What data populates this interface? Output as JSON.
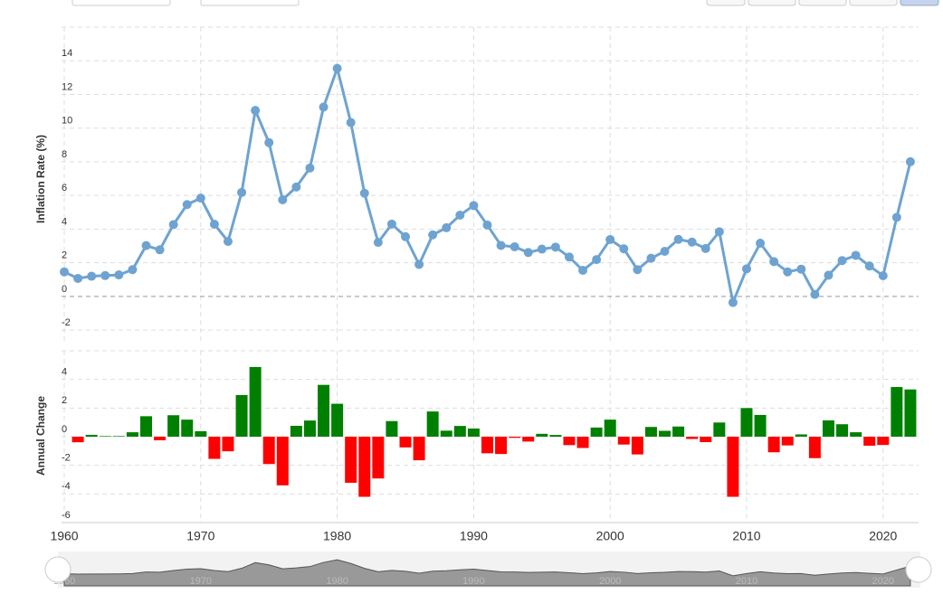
{
  "chart_data": [
    {
      "type": "line",
      "y_label": "Inflation Rate (%)",
      "color": "#6ea3d1",
      "x": [
        1960,
        1961,
        1962,
        1963,
        1964,
        1965,
        1966,
        1967,
        1968,
        1969,
        1970,
        1971,
        1972,
        1973,
        1974,
        1975,
        1976,
        1977,
        1978,
        1979,
        1980,
        1981,
        1982,
        1983,
        1984,
        1985,
        1986,
        1987,
        1988,
        1989,
        1990,
        1991,
        1992,
        1993,
        1994,
        1995,
        1996,
        1997,
        1998,
        1999,
        2000,
        2001,
        2002,
        2003,
        2004,
        2005,
        2006,
        2007,
        2008,
        2009,
        2010,
        2011,
        2012,
        2013,
        2014,
        2015,
        2016,
        2017,
        2018,
        2019,
        2020,
        2021,
        2022
      ],
      "values": [
        1.46,
        1.07,
        1.2,
        1.24,
        1.28,
        1.59,
        3.02,
        2.77,
        4.27,
        5.46,
        5.84,
        4.29,
        3.27,
        6.18,
        11.05,
        9.14,
        5.74,
        6.5,
        7.63,
        11.25,
        13.55,
        10.33,
        6.13,
        3.21,
        4.3,
        3.55,
        1.9,
        3.66,
        4.08,
        4.83,
        5.4,
        4.24,
        3.03,
        2.95,
        2.61,
        2.81,
        2.93,
        2.34,
        1.55,
        2.19,
        3.38,
        2.83,
        1.59,
        2.27,
        2.68,
        3.39,
        3.23,
        2.85,
        3.84,
        -0.36,
        1.64,
        3.16,
        2.07,
        1.46,
        1.62,
        0.12,
        1.26,
        2.13,
        2.44,
        1.81,
        1.23,
        4.7,
        8.0
      ],
      "xlim": [
        1959.8,
        2022.6
      ],
      "xticks": [
        1960,
        1970,
        1980,
        1990,
        2000,
        2010,
        2020
      ],
      "ylim": [
        -2.8,
        16
      ],
      "yticks": [
        -2,
        0,
        2,
        4,
        6,
        8,
        10,
        12,
        14
      ],
      "grid": true
    },
    {
      "type": "bar",
      "y_label": "Annual Change",
      "positive_color": "#008000",
      "negative_color": "#ff0000",
      "x": [
        1960,
        1961,
        1962,
        1963,
        1964,
        1965,
        1966,
        1967,
        1968,
        1969,
        1970,
        1971,
        1972,
        1973,
        1974,
        1975,
        1976,
        1977,
        1978,
        1979,
        1980,
        1981,
        1982,
        1983,
        1984,
        1985,
        1986,
        1987,
        1988,
        1989,
        1990,
        1991,
        1992,
        1993,
        1994,
        1995,
        1996,
        1997,
        1998,
        1999,
        2000,
        2001,
        2002,
        2003,
        2004,
        2005,
        2006,
        2007,
        2008,
        2009,
        2010,
        2011,
        2012,
        2013,
        2014,
        2015,
        2016,
        2017,
        2018,
        2019,
        2020,
        2021,
        2022
      ],
      "values": [
        null,
        -0.39,
        0.13,
        0.04,
        0.04,
        0.31,
        1.43,
        -0.25,
        1.5,
        1.19,
        0.38,
        -1.55,
        -1.02,
        2.91,
        4.87,
        -1.91,
        -3.4,
        0.76,
        1.13,
        3.62,
        2.3,
        -3.22,
        -4.2,
        -2.92,
        1.09,
        -0.75,
        -1.65,
        1.76,
        0.42,
        0.75,
        0.57,
        -1.16,
        -1.21,
        -0.08,
        -0.34,
        0.2,
        0.12,
        -0.59,
        -0.79,
        0.64,
        1.19,
        -0.55,
        -1.24,
        0.68,
        0.41,
        0.71,
        -0.16,
        -0.38,
        0.99,
        -4.2,
        2.0,
        1.52,
        -1.09,
        -0.61,
        0.16,
        -1.5,
        1.14,
        0.87,
        0.31,
        -0.63,
        -0.58,
        3.47,
        3.3
      ],
      "xlim": [
        1959.8,
        2022.6
      ],
      "xticks": [
        1960,
        1970,
        1980,
        1990,
        2000,
        2010,
        2020
      ],
      "ylim": [
        -6,
        6
      ],
      "yticks": [
        -6,
        -4,
        -2,
        0,
        2,
        4
      ],
      "grid": true
    }
  ]
}
